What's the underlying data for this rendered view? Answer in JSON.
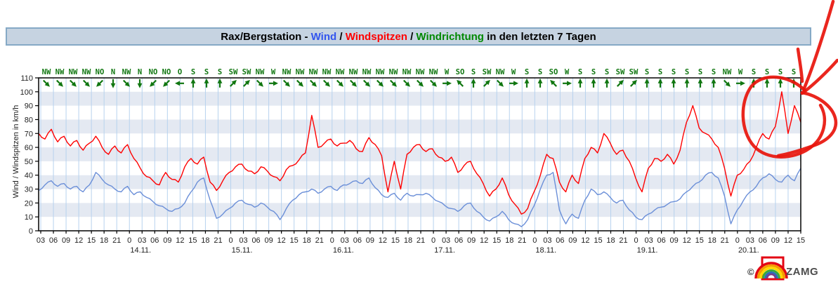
{
  "title": {
    "prefix": "Rax/Bergstation - ",
    "wind": "Wind",
    "sep1": " / ",
    "windspitzen": "Windspitzen",
    "sep2": " / ",
    "windrichtung": "Windrichtung",
    "suffix": " in den letzten 7 Tagen"
  },
  "colors": {
    "title_wind": "#3355ee",
    "title_windspitzen": "#ff0000",
    "title_windrichtung": "#008800",
    "wind_line": "#6b8fd8",
    "gust_line": "#ff0000",
    "direction_green": "#117711",
    "band": "#e4e9f2",
    "grid": "#b7d2ee",
    "axis": "#000000",
    "tick_text": "#222222",
    "annotation_red": "#e8150d"
  },
  "chart_data": {
    "type": "line",
    "title": "Rax/Bergstation - Wind / Windspitzen / Windrichtung in den letzten 7 Tagen",
    "ylabel": "Wind / Windspitzen in km/h",
    "ylim": [
      0,
      110
    ],
    "y_ticks": [
      "0",
      "10",
      "20",
      "30",
      "40",
      "50",
      "60",
      "70",
      "80",
      "90",
      "100",
      "110"
    ],
    "shaded_bands": [
      [
        10,
        20
      ],
      [
        30,
        40
      ],
      [
        50,
        60
      ],
      [
        70,
        80
      ],
      [
        90,
        100
      ]
    ],
    "x_ticks": [
      "03",
      "06",
      "09",
      "12",
      "15",
      "18",
      "21",
      "0",
      "03",
      "06",
      "09",
      "12",
      "15",
      "18",
      "21",
      "0",
      "03",
      "06",
      "09",
      "12",
      "15",
      "18",
      "21",
      "0",
      "03",
      "06",
      "09",
      "12",
      "15",
      "18",
      "21",
      "0",
      "03",
      "06",
      "09",
      "12",
      "15",
      "18",
      "21",
      "0",
      "03",
      "06",
      "09",
      "12",
      "15",
      "18",
      "21",
      "0",
      "03",
      "06",
      "09",
      "12",
      "15",
      "18",
      "21",
      "0",
      "03",
      "06",
      "09",
      "12",
      "15"
    ],
    "dates": [
      {
        "label": "14.11.",
        "tick_index": 7
      },
      {
        "label": "15.11.",
        "tick_index": 15
      },
      {
        "label": "16.11.",
        "tick_index": 23
      },
      {
        "label": "17.11.",
        "tick_index": 31
      },
      {
        "label": "18.11.",
        "tick_index": 39
      },
      {
        "label": "19.11.",
        "tick_index": 47
      },
      {
        "label": "20.11.",
        "tick_index": 55
      }
    ],
    "wind_directions": [
      "NW",
      "NW",
      "NW",
      "NW",
      "NO",
      "N",
      "NW",
      "N",
      "NO",
      "NO",
      "O",
      "S",
      "S",
      "S",
      "SW",
      "SW",
      "NW",
      "W",
      "NW",
      "NW",
      "NW",
      "NW",
      "NW",
      "NW",
      "NW",
      "NW",
      "NW",
      "NW",
      "NW",
      "NW",
      "W",
      "SO",
      "S",
      "SW",
      "NW",
      "W",
      "S",
      "S",
      "SO",
      "W",
      "S",
      "S",
      "S",
      "SW",
      "SW",
      "S",
      "S",
      "S",
      "S",
      "S",
      "S",
      "NW",
      "W",
      "S",
      "S",
      "S",
      "S"
    ],
    "series": [
      {
        "name": "Wind",
        "color": "#6b8fd8",
        "values": [
          29,
          33,
          36,
          32,
          34,
          30,
          32,
          28,
          33,
          42,
          37,
          33,
          30,
          28,
          32,
          26,
          28,
          24,
          21,
          18,
          16,
          14,
          16,
          20,
          28,
          35,
          38,
          22,
          9,
          12,
          16,
          20,
          22,
          19,
          17,
          20,
          17,
          14,
          8,
          16,
          22,
          26,
          28,
          30,
          27,
          30,
          32,
          29,
          33,
          34,
          36,
          34,
          38,
          31,
          26,
          24,
          27,
          22,
          27,
          25,
          26,
          27,
          24,
          21,
          18,
          16,
          14,
          18,
          20,
          14,
          10,
          7,
          10,
          14,
          8,
          5,
          3,
          8,
          18,
          30,
          40,
          42,
          15,
          5,
          12,
          9,
          22,
          30,
          26,
          28,
          24,
          20,
          22,
          15,
          10,
          8,
          12,
          15,
          17,
          19,
          21,
          23,
          28,
          32,
          35,
          40,
          42,
          38,
          25,
          5,
          15,
          22,
          28,
          32,
          38,
          41,
          37,
          35,
          40,
          36,
          45
        ]
      },
      {
        "name": "Windspitzen",
        "color": "#ff0000",
        "values": [
          70,
          66,
          73,
          64,
          68,
          61,
          65,
          58,
          63,
          68,
          60,
          55,
          61,
          56,
          62,
          52,
          45,
          39,
          36,
          33,
          42,
          37,
          35,
          46,
          52,
          48,
          53,
          35,
          29,
          36,
          42,
          46,
          48,
          43,
          41,
          46,
          43,
          39,
          36,
          44,
          47,
          51,
          56,
          83,
          60,
          63,
          66,
          61,
          63,
          65,
          59,
          57,
          67,
          62,
          54,
          28,
          50,
          30,
          55,
          60,
          62,
          57,
          59,
          53,
          50,
          53,
          42,
          47,
          50,
          41,
          34,
          25,
          30,
          38,
          26,
          19,
          12,
          16,
          28,
          40,
          55,
          52,
          35,
          28,
          40,
          34,
          52,
          60,
          56,
          70,
          63,
          55,
          58,
          50,
          38,
          28,
          45,
          52,
          50,
          55,
          48,
          58,
          78,
          90,
          74,
          70,
          66,
          60,
          45,
          25,
          40,
          44,
          50,
          60,
          70,
          66,
          75,
          100,
          70,
          90,
          78
        ]
      }
    ]
  },
  "annotation": {
    "description": "hand-drawn red loop around the final wind peak with strokes coming from the top-right corner",
    "color": "#e8150d",
    "stroke_width": 4.5,
    "paths": [
      "M 1186,2 C 1177,34 1159,92 1144,128",
      "M 1192,86 C 1178,102 1157,122 1142,133",
      "M 1136,70 C 1138,85 1141,100 1142,116",
      "M 1146,129 C 1123,106 1085,103 1069,124 C 1053,147 1054,186 1073,208 C 1092,229 1129,228 1153,211 C 1173,197 1180,170 1168,150",
      "M 1142,132 C 1163,136 1184,150 1189,168 C 1194,187 1178,201 1157,208 C 1143,213 1124,219 1108,222"
    ]
  },
  "footer": {
    "copyright_symbol": "©",
    "brand": "ZAMG"
  }
}
